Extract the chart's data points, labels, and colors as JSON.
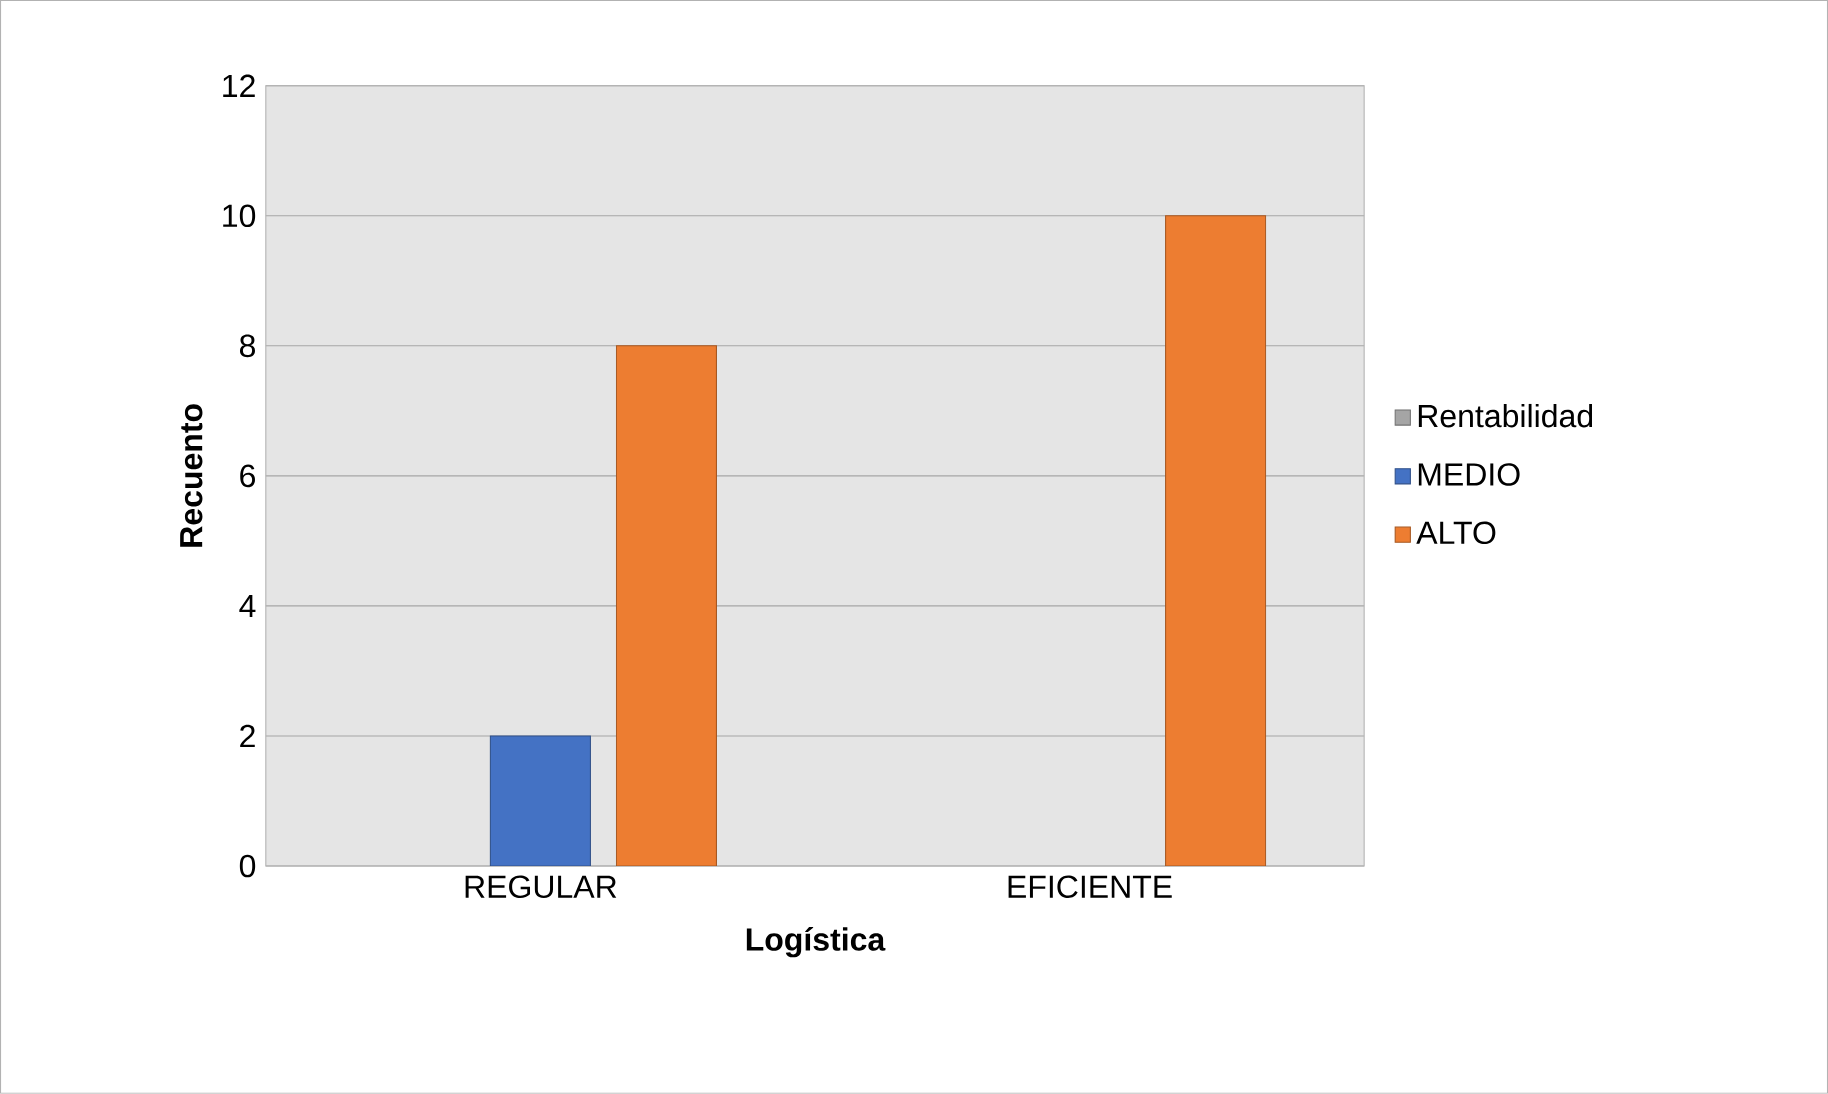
{
  "chart_data": {
    "type": "bar",
    "xlabel": "Logística",
    "ylabel": "Recuento",
    "categories": [
      "REGULAR",
      "EFICIENTE"
    ],
    "series": [
      {
        "name": "Rentabilidad",
        "color": "#a5a5a5",
        "values": [
          null,
          null
        ]
      },
      {
        "name": "MEDIO",
        "color": "#4472c4",
        "values": [
          2,
          null
        ]
      },
      {
        "name": "ALTO",
        "color": "#ed7d31",
        "values": [
          8,
          10
        ]
      }
    ],
    "ylim": [
      0,
      12
    ],
    "yticks": [
      0,
      2,
      4,
      6,
      8,
      10,
      12
    ],
    "grid": "y",
    "legend": "right"
  }
}
